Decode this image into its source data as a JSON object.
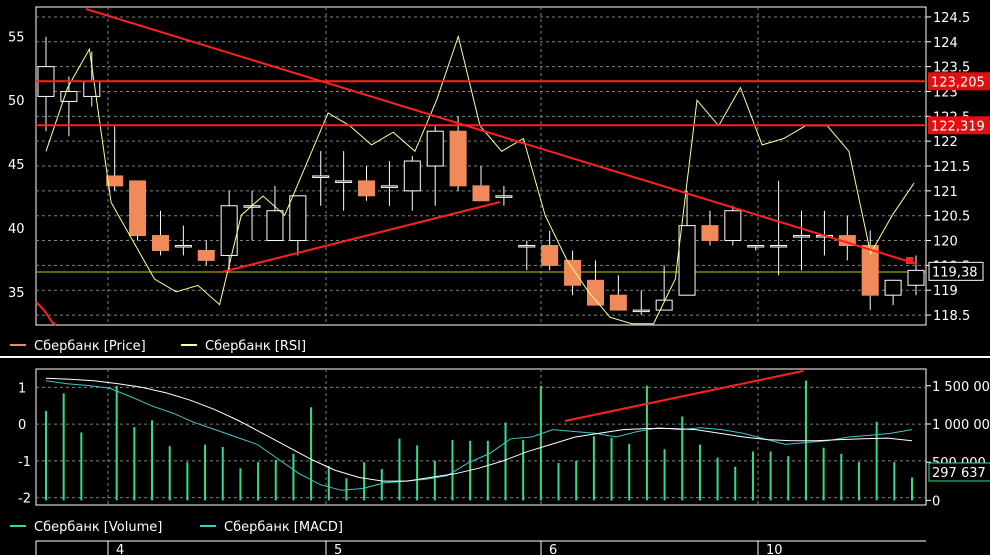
{
  "chart_data": {
    "type": "candlestick",
    "colors": {
      "background": "#000000",
      "frame": "#ffffff",
      "grid": "#808080",
      "candle_fill": "#f08a5a",
      "candle_edge": "#ffffff",
      "rsi_line": "#ffff99",
      "trend_lines": "#ff2020",
      "volume_bars": "#33dd88",
      "macd_line": "#40c8c8",
      "macd_signal": "#ffffff",
      "yellow_hline": "#c8c800",
      "price_badge": "#ffffff",
      "volume_badge": "#33dd88"
    },
    "price_panel": {
      "right_axis": {
        "ticks": [
          124.5,
          124.0,
          123.5,
          123.0,
          122.5,
          122.0,
          121.5,
          121.0,
          120.5,
          120.0,
          119.5,
          119.0,
          118.5
        ],
        "range": [
          118.3,
          124.7
        ]
      },
      "left_axis": {
        "ticks": [
          55,
          50,
          45,
          40,
          35
        ],
        "range": [
          32.4,
          57.3
        ]
      },
      "grid": true,
      "hlines": [
        {
          "value": 123.205,
          "label": "123,205"
        },
        {
          "value": 122.319,
          "label": "122,319"
        }
      ],
      "current_price": {
        "value": 119.38,
        "label": "119,38"
      },
      "candles": [
        {
          "o": 122.9,
          "h": 124.1,
          "l": 122.2,
          "c": 123.5
        },
        {
          "o": 122.8,
          "h": 123.3,
          "l": 122.1,
          "c": 123.0
        },
        {
          "o": 122.9,
          "h": 123.8,
          "l": 122.7,
          "c": 123.2
        },
        {
          "o": 121.3,
          "h": 122.3,
          "l": 121.0,
          "c": 121.1
        },
        {
          "o": 121.2,
          "h": 121.2,
          "l": 120.0,
          "c": 120.1
        },
        {
          "o": 120.1,
          "h": 120.6,
          "l": 119.7,
          "c": 119.8
        },
        {
          "o": 119.9,
          "h": 120.3,
          "l": 119.7,
          "c": 119.9
        },
        {
          "o": 119.8,
          "h": 120.0,
          "l": 119.5,
          "c": 119.6
        },
        {
          "o": 119.7,
          "h": 121.0,
          "l": 119.4,
          "c": 120.7
        },
        {
          "o": 120.7,
          "h": 121.0,
          "l": 120.0,
          "c": 120.7
        },
        {
          "o": 120.0,
          "h": 121.1,
          "l": 120.0,
          "c": 120.6
        },
        {
          "o": 120.0,
          "h": 120.8,
          "l": 119.7,
          "c": 120.9
        },
        {
          "o": 121.3,
          "h": 121.8,
          "l": 120.7,
          "c": 121.3
        },
        {
          "o": 121.2,
          "h": 121.8,
          "l": 120.6,
          "c": 121.2
        },
        {
          "o": 121.2,
          "h": 121.5,
          "l": 120.8,
          "c": 120.9
        },
        {
          "o": 121.1,
          "h": 121.6,
          "l": 120.7,
          "c": 121.1
        },
        {
          "o": 121.0,
          "h": 121.7,
          "l": 120.6,
          "c": 121.6
        },
        {
          "o": 121.5,
          "h": 122.3,
          "l": 120.7,
          "c": 122.2
        },
        {
          "o": 122.2,
          "h": 122.5,
          "l": 121.0,
          "c": 121.1
        },
        {
          "o": 121.1,
          "h": 121.5,
          "l": 120.8,
          "c": 120.8
        },
        {
          "o": 120.9,
          "h": 121.1,
          "l": 120.7,
          "c": 120.9
        },
        {
          "o": 119.9,
          "h": 120.0,
          "l": 119.4,
          "c": 119.9
        },
        {
          "o": 119.9,
          "h": 120.2,
          "l": 119.4,
          "c": 119.5
        },
        {
          "o": 119.6,
          "h": 119.8,
          "l": 118.9,
          "c": 119.1
        },
        {
          "o": 119.2,
          "h": 119.6,
          "l": 118.8,
          "c": 118.7
        },
        {
          "o": 118.9,
          "h": 119.3,
          "l": 118.7,
          "c": 118.6
        },
        {
          "o": 118.6,
          "h": 119.0,
          "l": 118.5,
          "c": 118.6
        },
        {
          "o": 118.6,
          "h": 119.5,
          "l": 118.6,
          "c": 118.8
        },
        {
          "o": 118.9,
          "h": 121.0,
          "l": 118.9,
          "c": 120.3
        },
        {
          "o": 120.3,
          "h": 120.6,
          "l": 119.9,
          "c": 120.0
        },
        {
          "o": 120.0,
          "h": 120.7,
          "l": 119.9,
          "c": 120.6
        },
        {
          "o": 119.9,
          "h": 119.9,
          "l": 119.8,
          "c": 119.9
        },
        {
          "o": 119.9,
          "h": 121.2,
          "l": 119.3,
          "c": 119.9
        },
        {
          "o": 120.1,
          "h": 120.6,
          "l": 119.4,
          "c": 120.1
        },
        {
          "o": 120.1,
          "h": 120.6,
          "l": 119.7,
          "c": 120.1
        },
        {
          "o": 120.1,
          "h": 120.5,
          "l": 119.6,
          "c": 119.9
        },
        {
          "o": 119.9,
          "h": 120.2,
          "l": 118.6,
          "c": 118.9
        },
        {
          "o": 118.9,
          "h": 119.2,
          "l": 118.7,
          "c": 119.2
        },
        {
          "o": 119.1,
          "h": 119.7,
          "l": 118.9,
          "c": 119.4
        }
      ],
      "rsi": [
        46,
        51,
        54,
        42,
        39,
        36,
        35,
        35.5,
        34,
        41,
        42.5,
        41,
        45,
        49,
        48,
        46.5,
        47.5,
        46,
        50,
        55,
        48,
        46,
        47,
        41,
        37.5,
        35,
        33,
        32.5,
        32.5,
        36,
        50,
        48,
        51,
        46.5,
        47,
        48,
        48,
        46,
        38,
        41,
        43.5
      ]
    },
    "legend_top": [
      "Сбербанк [Price]",
      "Сбербанк [RSI]"
    ],
    "indicator_panel": {
      "left_axis": {
        "ticks": [
          1,
          0,
          -1,
          -2
        ],
        "range": [
          -2.2,
          1.5
        ]
      },
      "right_axis": {
        "ticks": [
          "1 500 000",
          "1 000 000",
          "500 000",
          "0"
        ],
        "range": [
          -60000,
          1720000
        ]
      },
      "volume_badge": "297 637",
      "volume": [
        1170000,
        1400000,
        890000,
        0,
        1500000,
        960000,
        1050000,
        710000,
        500000,
        730000,
        700000,
        420000,
        500000,
        530000,
        610000,
        1220000,
        450000,
        290000,
        500000,
        410000,
        810000,
        720000,
        520000,
        790000,
        780000,
        780000,
        1020000,
        790000,
        1500000,
        490000,
        520000,
        840000,
        820000,
        740000,
        1500000,
        670000,
        1100000,
        730000,
        560000,
        440000,
        640000,
        640000,
        580000,
        1570000,
        690000,
        610000,
        500000,
        1030000,
        500000,
        300000
      ],
      "macd": [
        1.18,
        1.1,
        1.05,
        0.98,
        0.75,
        0.5,
        0.3,
        0.05,
        -0.15,
        -0.35,
        -0.55,
        -0.95,
        -1.35,
        -1.65,
        -1.8,
        -1.75,
        -1.6,
        -1.55,
        -1.5,
        -1.4,
        -1.05,
        -0.8,
        -0.4,
        -0.35,
        -0.15,
        -0.2,
        -0.25,
        -0.35,
        -0.2,
        -0.1,
        -0.15,
        -0.1,
        -0.15,
        -0.25,
        -0.4,
        -0.55,
        -0.5,
        -0.45,
        -0.35,
        -0.3,
        -0.25,
        -0.15
      ],
      "macd_signal": [
        1.25,
        1.22,
        1.18,
        1.1,
        1.0,
        0.85,
        0.65,
        0.4,
        0.1,
        -0.25,
        -0.6,
        -0.95,
        -1.25,
        -1.45,
        -1.55,
        -1.55,
        -1.45,
        -1.35,
        -1.2,
        -1.0,
        -0.75,
        -0.55,
        -0.35,
        -0.25,
        -0.15,
        -0.12,
        -0.12,
        -0.15,
        -0.25,
        -0.35,
        -0.42,
        -0.45,
        -0.45,
        -0.42,
        -0.4,
        -0.38,
        -0.45
      ]
    },
    "legend_bottom": [
      "Сбербанк [Volume]",
      "Сбербанк [MACD]"
    ],
    "x_axis": {
      "labels": [
        "4",
        "5",
        "6",
        "10"
      ]
    }
  }
}
